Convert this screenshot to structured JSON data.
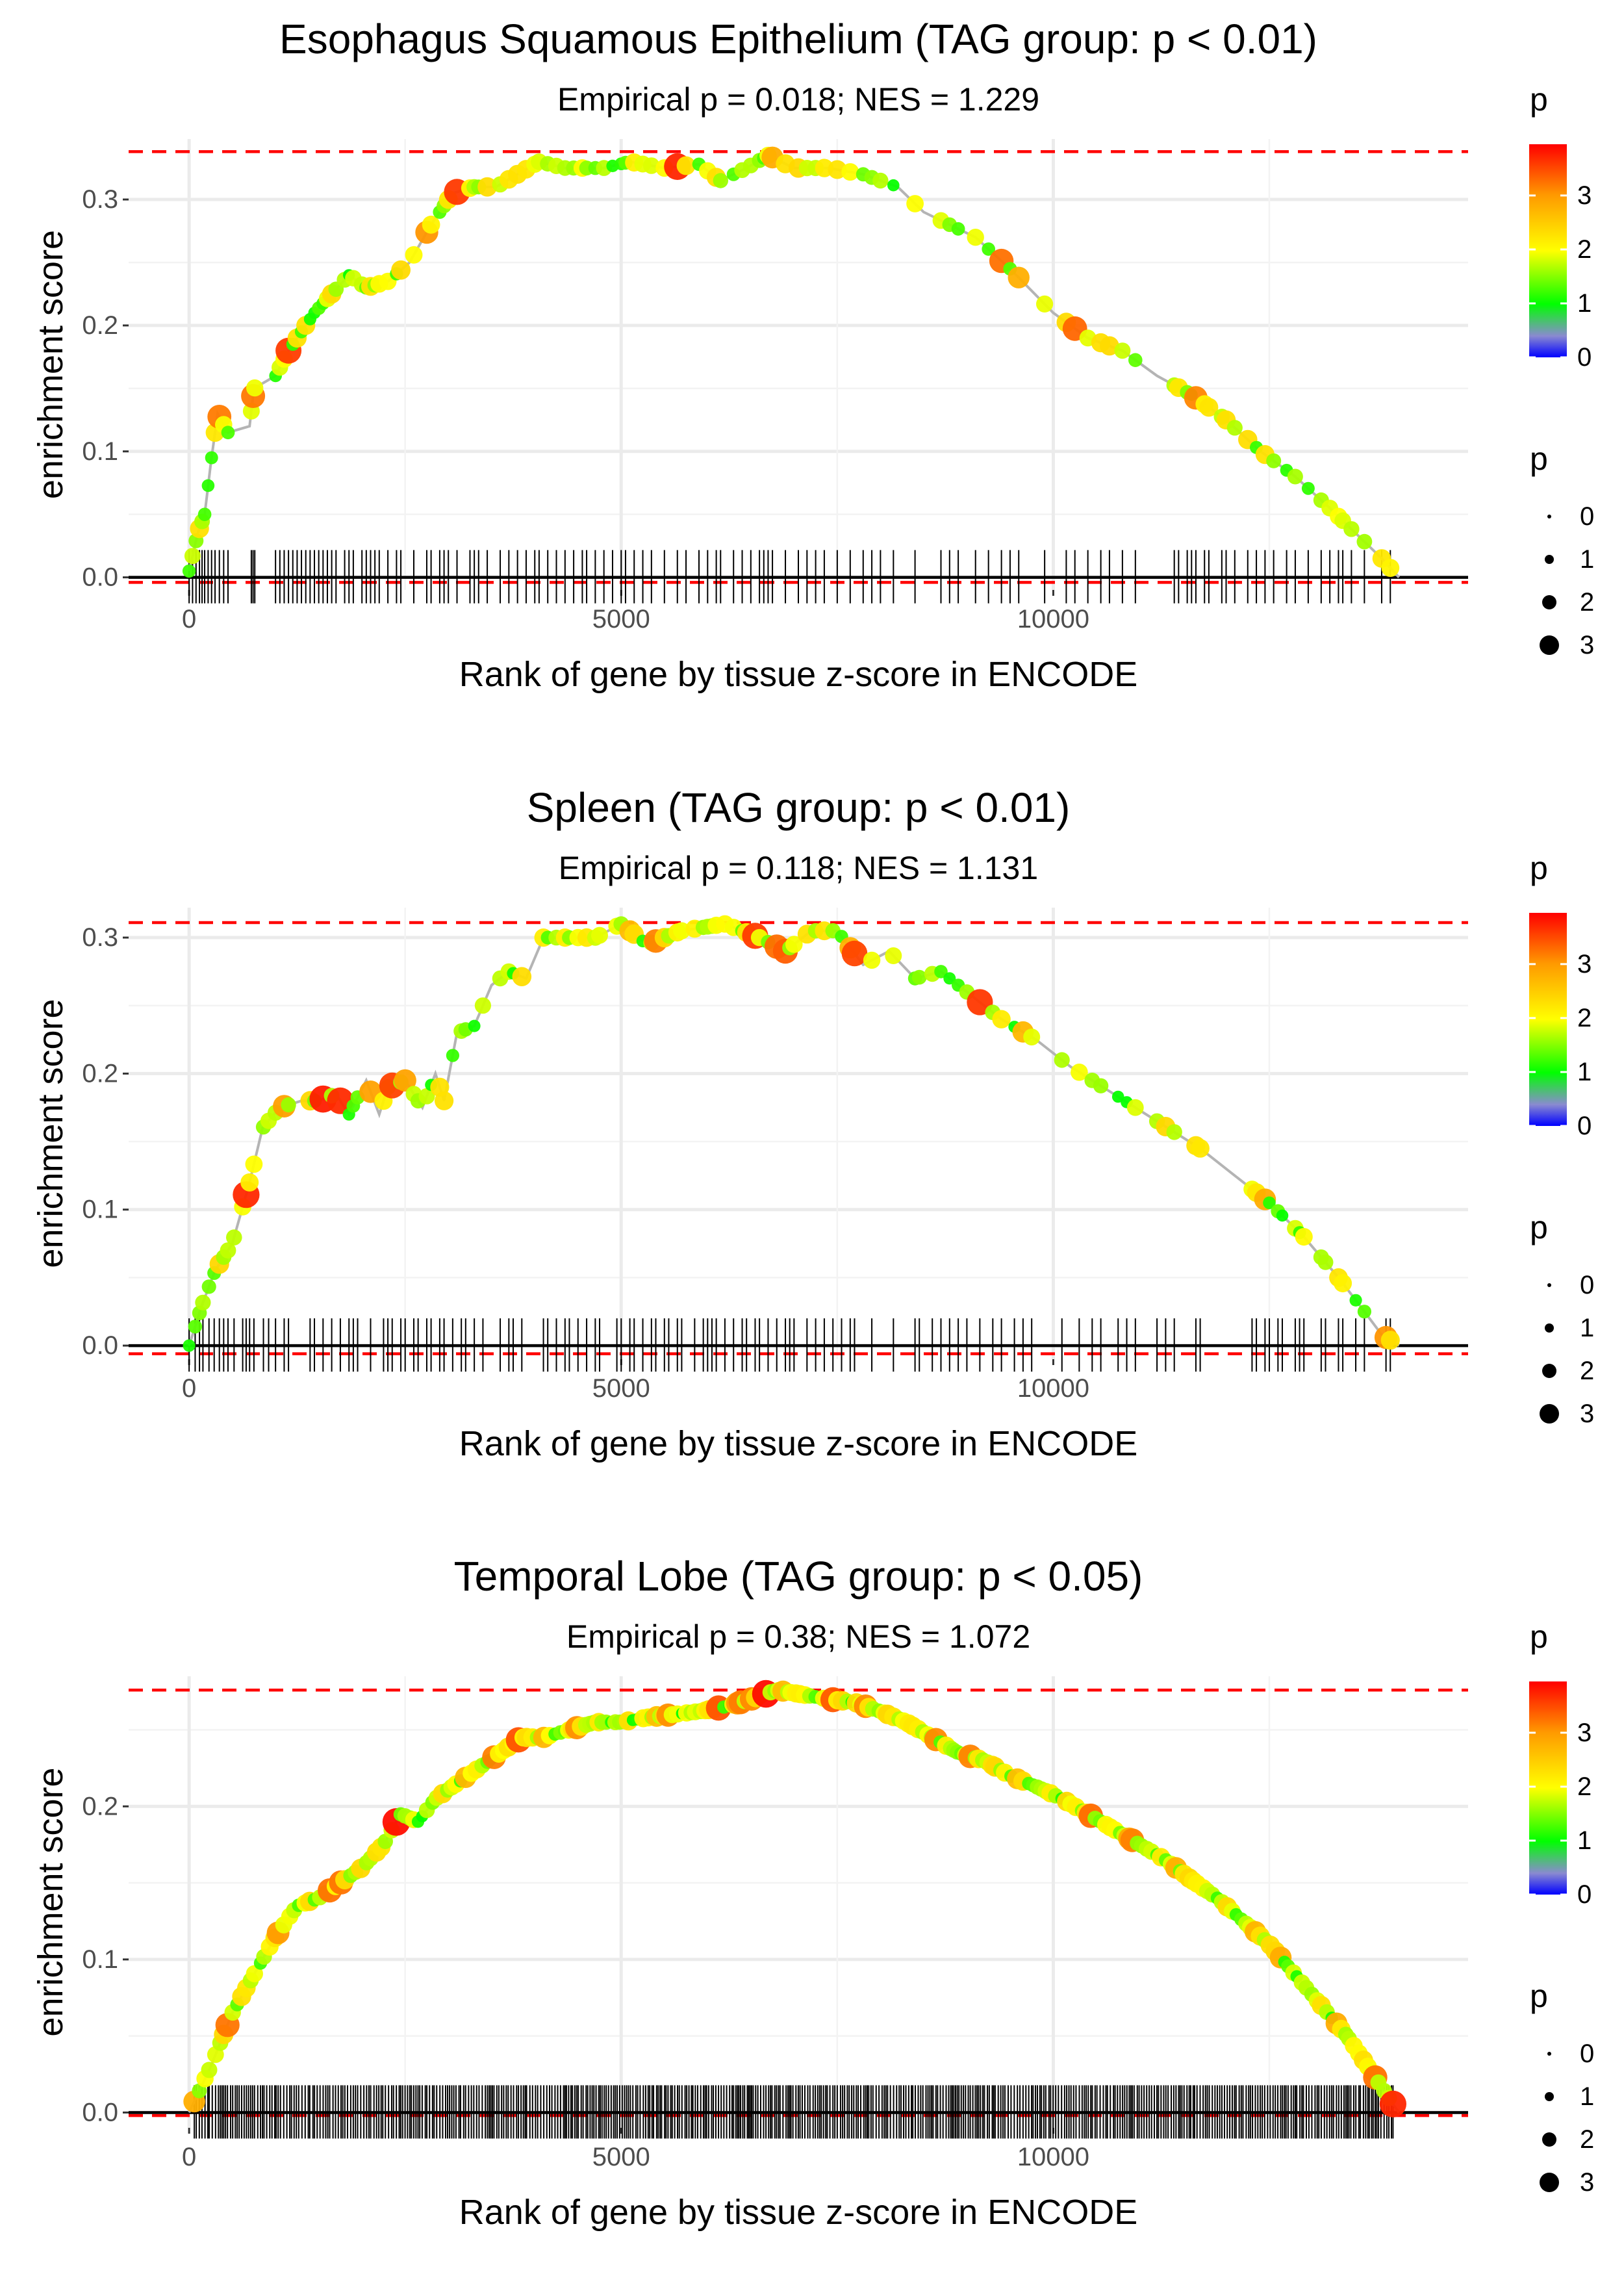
{
  "chart_data": [
    {
      "type": "line",
      "title": "Esophagus Squamous Epithelium (TAG group: p < 0.01)",
      "subtitle": "Empirical p = 0.018; NES = 1.229",
      "xlabel": "Rank of gene by tissue z-score in ENCODE",
      "ylabel": "enrichment score",
      "xlim": [
        -700,
        14800
      ],
      "ylim": [
        -0.01,
        0.348
      ],
      "xticks": [
        0,
        5000,
        10000
      ],
      "xtick_labels": [
        "0",
        "5000",
        "10000"
      ],
      "yticks": [
        0.0,
        0.1,
        0.2,
        0.3
      ],
      "ytick_labels": [
        "0.0",
        "0.1",
        "0.2",
        "0.3"
      ],
      "max_es": 0.338,
      "min_es": -0.004,
      "n_genes": 14000,
      "curve": [
        [
          0,
          0.005
        ],
        [
          100,
          0.035
        ],
        [
          180,
          0.05
        ],
        [
          250,
          0.09
        ],
        [
          330,
          0.13
        ],
        [
          450,
          0.115
        ],
        [
          700,
          0.12
        ],
        [
          750,
          0.15
        ],
        [
          1000,
          0.16
        ],
        [
          1150,
          0.18
        ],
        [
          1300,
          0.195
        ],
        [
          1450,
          0.21
        ],
        [
          1650,
          0.225
        ],
        [
          1850,
          0.24
        ],
        [
          2050,
          0.23
        ],
        [
          2300,
          0.235
        ],
        [
          2550,
          0.25
        ],
        [
          2800,
          0.28
        ],
        [
          3050,
          0.305
        ],
        [
          3300,
          0.31
        ],
        [
          3550,
          0.31
        ],
        [
          3800,
          0.32
        ],
        [
          4050,
          0.33
        ],
        [
          4350,
          0.325
        ],
        [
          4800,
          0.325
        ],
        [
          5100,
          0.33
        ],
        [
          5500,
          0.325
        ],
        [
          5900,
          0.328
        ],
        [
          6150,
          0.315
        ],
        [
          6450,
          0.325
        ],
        [
          6700,
          0.335
        ],
        [
          7000,
          0.325
        ],
        [
          7400,
          0.325
        ],
        [
          7800,
          0.32
        ],
        [
          8200,
          0.31
        ],
        [
          8500,
          0.29
        ],
        [
          8800,
          0.28
        ],
        [
          9100,
          0.27
        ],
        [
          9500,
          0.245
        ],
        [
          10000,
          0.21
        ],
        [
          10400,
          0.19
        ],
        [
          10800,
          0.18
        ],
        [
          11200,
          0.16
        ],
        [
          11600,
          0.145
        ],
        [
          12000,
          0.125
        ],
        [
          12400,
          0.1
        ],
        [
          12800,
          0.08
        ],
        [
          13200,
          0.055
        ],
        [
          13500,
          0.035
        ],
        [
          13800,
          0.015
        ],
        [
          14000,
          0.0
        ]
      ],
      "hits": [
        0,
        40,
        80,
        120,
        150,
        180,
        220,
        260,
        300,
        350,
        400,
        450,
        720,
        740,
        760,
        1000,
        1050,
        1100,
        1150,
        1200,
        1250,
        1300,
        1350,
        1400,
        1450,
        1500,
        1550,
        1600,
        1650,
        1700,
        1800,
        1850,
        1900,
        2000,
        2050,
        2100,
        2150,
        2200,
        2300,
        2400,
        2450,
        2600,
        2750,
        2800,
        2900,
        2950,
        3000,
        3100,
        3250,
        3300,
        3350,
        3450,
        3600,
        3700,
        3800,
        3900,
        4000,
        4050,
        4150,
        4250,
        4350,
        4450,
        4550,
        4600,
        4700,
        4800,
        4900,
        5000,
        5050,
        5150,
        5250,
        5350,
        5500,
        5650,
        5750,
        5900,
        6000,
        6100,
        6150,
        6300,
        6400,
        6500,
        6600,
        6650,
        6700,
        6750,
        6900,
        7050,
        7150,
        7250,
        7350,
        7500,
        7650,
        7800,
        7900,
        8000,
        8150,
        8400,
        8700,
        8800,
        8900,
        9100,
        9250,
        9400,
        9500,
        9600,
        9900,
        10150,
        10250,
        10400,
        10550,
        10650,
        10800,
        10950,
        11400,
        11450,
        11550,
        11600,
        11650,
        11750,
        11800,
        11950,
        12000,
        12100,
        12250,
        12350,
        12450,
        12550,
        12700,
        12800,
        12950,
        13100,
        13200,
        13300,
        13350,
        13450,
        13600,
        13800,
        13900
      ],
      "colorbar": {
        "title": "p",
        "ticks": [
          0,
          1,
          2,
          3
        ],
        "tick_labels": [
          "0",
          "1",
          "2",
          "3"
        ],
        "max": 3.95
      },
      "sizelegend": {
        "title": "p",
        "entries": [
          "0",
          "1",
          "2",
          "3"
        ]
      }
    },
    {
      "type": "line",
      "title": "Spleen (TAG group: p < 0.01)",
      "subtitle": "Empirical p = 0.118; NES = 1.131",
      "xlabel": "Rank of gene by tissue z-score in ENCODE",
      "ylabel": "enrichment score",
      "xlim": [
        -700,
        14800
      ],
      "ylim": [
        -0.01,
        0.322
      ],
      "xticks": [
        0,
        5000,
        10000
      ],
      "xtick_labels": [
        "0",
        "5000",
        "10000"
      ],
      "yticks": [
        0.0,
        0.1,
        0.2,
        0.3
      ],
      "ytick_labels": [
        "0.0",
        "0.1",
        "0.2",
        "0.3"
      ],
      "max_es": 0.311,
      "min_es": -0.006,
      "n_genes": 14000,
      "curve": [
        [
          0,
          0.0
        ],
        [
          150,
          0.03
        ],
        [
          300,
          0.055
        ],
        [
          500,
          0.075
        ],
        [
          700,
          0.12
        ],
        [
          850,
          0.16
        ],
        [
          1050,
          0.175
        ],
        [
          1300,
          0.18
        ],
        [
          1500,
          0.18
        ],
        [
          1700,
          0.185
        ],
        [
          1850,
          0.17
        ],
        [
          2050,
          0.195
        ],
        [
          2200,
          0.17
        ],
        [
          2300,
          0.19
        ],
        [
          2500,
          0.195
        ],
        [
          2700,
          0.175
        ],
        [
          2850,
          0.2
        ],
        [
          2950,
          0.18
        ],
        [
          3100,
          0.23
        ],
        [
          3300,
          0.235
        ],
        [
          3500,
          0.265
        ],
        [
          3700,
          0.275
        ],
        [
          3900,
          0.27
        ],
        [
          4100,
          0.3
        ],
        [
          4400,
          0.3
        ],
        [
          4700,
          0.3
        ],
        [
          5000,
          0.31
        ],
        [
          5300,
          0.295
        ],
        [
          5700,
          0.305
        ],
        [
          6200,
          0.31
        ],
        [
          6600,
          0.3
        ],
        [
          6900,
          0.29
        ],
        [
          7200,
          0.305
        ],
        [
          7500,
          0.305
        ],
        [
          7800,
          0.28
        ],
        [
          8100,
          0.29
        ],
        [
          8400,
          0.27
        ],
        [
          8700,
          0.275
        ],
        [
          9000,
          0.26
        ],
        [
          9400,
          0.24
        ],
        [
          9800,
          0.225
        ],
        [
          10200,
          0.205
        ],
        [
          10700,
          0.185
        ],
        [
          11200,
          0.165
        ],
        [
          11700,
          0.145
        ],
        [
          12100,
          0.125
        ],
        [
          12500,
          0.105
        ],
        [
          12900,
          0.08
        ],
        [
          13300,
          0.05
        ],
        [
          13600,
          0.025
        ],
        [
          13800,
          0.008
        ],
        [
          14000,
          0.0
        ]
      ],
      "hits": [
        0,
        70,
        120,
        160,
        230,
        290,
        350,
        400,
        450,
        520,
        620,
        660,
        700,
        750,
        860,
        920,
        1000,
        1100,
        1150,
        1400,
        1450,
        1550,
        1650,
        1750,
        1850,
        1900,
        1950,
        2100,
        2250,
        2300,
        2350,
        2450,
        2500,
        2600,
        2650,
        2750,
        2800,
        2900,
        2950,
        3050,
        3150,
        3200,
        3300,
        3400,
        3600,
        3700,
        3750,
        3850,
        4100,
        4150,
        4250,
        4350,
        4400,
        4500,
        4600,
        4700,
        4750,
        4950,
        5000,
        5100,
        5150,
        5250,
        5350,
        5400,
        5500,
        5550,
        5650,
        5700,
        5850,
        5950,
        6000,
        6050,
        6100,
        6200,
        6300,
        6400,
        6450,
        6550,
        6600,
        6700,
        6800,
        6900,
        6950,
        7000,
        7150,
        7250,
        7350,
        7450,
        7550,
        7650,
        7700,
        7900,
        8150,
        8400,
        8450,
        8600,
        8700,
        8800,
        8900,
        9000,
        9150,
        9300,
        9400,
        9550,
        9650,
        9750,
        10100,
        10300,
        10450,
        10550,
        10750,
        10850,
        10950,
        11200,
        11300,
        11400,
        11650,
        11700,
        12300,
        12350,
        12450,
        12500,
        12600,
        12650,
        12800,
        12850,
        12900,
        13100,
        13150,
        13300,
        13350,
        13500,
        13600,
        13850,
        13900
      ],
      "colorbar": {
        "title": "p",
        "ticks": [
          0,
          1,
          2,
          3
        ],
        "tick_labels": [
          "0",
          "1",
          "2",
          "3"
        ],
        "max": 3.95
      },
      "sizelegend": {
        "title": "p",
        "entries": [
          "0",
          "1",
          "2",
          "3"
        ]
      }
    },
    {
      "type": "line",
      "title": "Temporal Lobe (TAG group: p < 0.05)",
      "subtitle": "Empirical p = 0.38; NES = 1.072",
      "xlabel": "Rank of gene by tissue z-score in ENCODE",
      "ylabel": "enrichment score",
      "xlim": [
        -700,
        14800
      ],
      "ylim": [
        -0.01,
        0.285
      ],
      "xticks": [
        0,
        5000,
        10000
      ],
      "xtick_labels": [
        "0",
        "5000",
        "10000"
      ],
      "yticks": [
        0.0,
        0.1,
        0.2
      ],
      "ytick_labels": [
        "0.0",
        "0.1",
        "0.2"
      ],
      "max_es": 0.276,
      "min_es": -0.002,
      "n_genes": 14000,
      "curve": [
        [
          0,
          0.0
        ],
        [
          250,
          0.03
        ],
        [
          500,
          0.065
        ],
        [
          750,
          0.09
        ],
        [
          1000,
          0.115
        ],
        [
          1250,
          0.135
        ],
        [
          1500,
          0.14
        ],
        [
          1750,
          0.15
        ],
        [
          2000,
          0.16
        ],
        [
          2250,
          0.175
        ],
        [
          2450,
          0.195
        ],
        [
          2650,
          0.19
        ],
        [
          2850,
          0.205
        ],
        [
          3100,
          0.215
        ],
        [
          3350,
          0.225
        ],
        [
          3600,
          0.235
        ],
        [
          3850,
          0.245
        ],
        [
          4100,
          0.245
        ],
        [
          4400,
          0.25
        ],
        [
          4700,
          0.255
        ],
        [
          5000,
          0.255
        ],
        [
          5300,
          0.258
        ],
        [
          5600,
          0.26
        ],
        [
          5900,
          0.262
        ],
        [
          6200,
          0.265
        ],
        [
          6500,
          0.27
        ],
        [
          6800,
          0.276
        ],
        [
          7100,
          0.273
        ],
        [
          7400,
          0.27
        ],
        [
          7700,
          0.268
        ],
        [
          8000,
          0.262
        ],
        [
          8300,
          0.255
        ],
        [
          8600,
          0.245
        ],
        [
          8900,
          0.235
        ],
        [
          9200,
          0.23
        ],
        [
          9500,
          0.22
        ],
        [
          9800,
          0.213
        ],
        [
          10100,
          0.205
        ],
        [
          10400,
          0.195
        ],
        [
          10700,
          0.185
        ],
        [
          11000,
          0.175
        ],
        [
          11300,
          0.165
        ],
        [
          11600,
          0.152
        ],
        [
          11900,
          0.14
        ],
        [
          12200,
          0.125
        ],
        [
          12500,
          0.11
        ],
        [
          12800,
          0.09
        ],
        [
          13100,
          0.07
        ],
        [
          13400,
          0.05
        ],
        [
          13700,
          0.025
        ],
        [
          13900,
          0.008
        ],
        [
          14000,
          0.0
        ]
      ],
      "hits_dense": true,
      "colorbar": {
        "title": "p",
        "ticks": [
          0,
          1,
          2,
          3
        ],
        "tick_labels": [
          "0",
          "1",
          "2",
          "3"
        ],
        "max": 3.95
      },
      "sizelegend": {
        "title": "p",
        "entries": [
          "0",
          "1",
          "2",
          "3"
        ]
      }
    }
  ],
  "colors": {
    "curve": "#b4b4b4",
    "refline": "#ff0000",
    "axis": "#000000",
    "grid": "#ebebeb",
    "text": "#1a1a1a",
    "tick_text": "#4d4d4d",
    "gradient": [
      "#0000ff",
      "#8080c0",
      "#00ff00",
      "#ffff00",
      "#ff8000",
      "#ff0000"
    ]
  }
}
